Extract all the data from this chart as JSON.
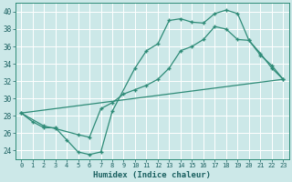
{
  "xlabel": "Humidex (Indice chaleur)",
  "bg_color": "#cce8e8",
  "grid_color": "#b0d4d4",
  "line_color": "#2e8b77",
  "xlim": [
    -0.5,
    23.5
  ],
  "ylim": [
    23,
    41
  ],
  "yticks": [
    24,
    26,
    28,
    30,
    32,
    34,
    36,
    38,
    40
  ],
  "xticks": [
    0,
    1,
    2,
    3,
    4,
    5,
    6,
    7,
    8,
    9,
    10,
    11,
    12,
    13,
    14,
    15,
    16,
    17,
    18,
    19,
    20,
    21,
    22,
    23
  ],
  "line1_x": [
    0,
    23
  ],
  "line1_y": [
    28.3,
    32.2
  ],
  "line2_x": [
    0,
    1,
    2,
    3,
    4,
    5,
    6,
    7,
    8,
    10,
    11,
    12,
    13,
    14,
    15,
    16,
    17,
    18,
    19,
    20,
    21,
    22,
    23
  ],
  "line2_y": [
    28.3,
    27.3,
    26.6,
    26.6,
    25.2,
    23.8,
    23.5,
    23.8,
    28.5,
    33.5,
    35.5,
    36.3,
    39.0,
    39.2,
    38.8,
    38.7,
    39.8,
    40.2,
    39.8,
    36.7,
    35.2,
    33.5,
    32.2
  ],
  "line3_x": [
    0,
    2,
    3,
    5,
    6,
    7,
    8,
    9,
    10,
    11,
    12,
    13,
    14,
    15,
    16,
    17,
    18,
    19,
    20,
    21,
    22,
    23
  ],
  "line3_y": [
    28.3,
    26.8,
    26.5,
    25.8,
    25.5,
    28.8,
    29.5,
    30.5,
    31.0,
    31.5,
    32.2,
    33.5,
    35.5,
    36.0,
    36.8,
    38.3,
    38.0,
    36.8,
    36.7,
    35.0,
    33.8,
    32.2
  ]
}
